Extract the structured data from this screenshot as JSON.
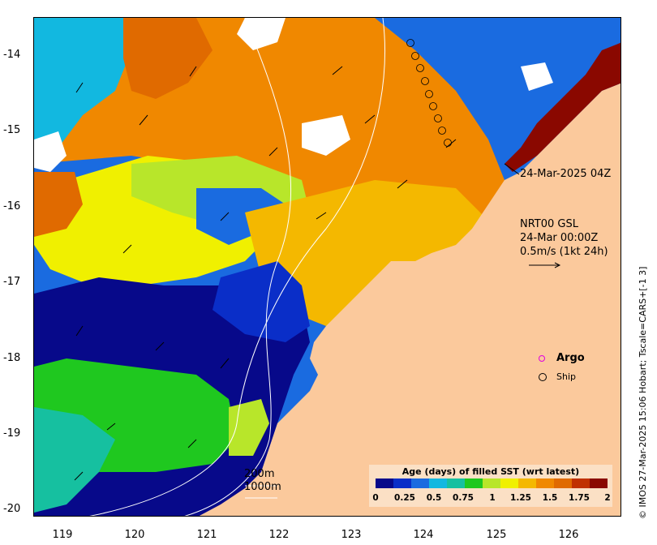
{
  "y_axis": {
    "ticks": [
      "-14",
      "-15",
      "-16",
      "-17",
      "-18",
      "-19",
      "-20"
    ]
  },
  "x_axis": {
    "ticks": [
      "119",
      "120",
      "121",
      "122",
      "123",
      "124",
      "125",
      "126"
    ]
  },
  "annotations": {
    "ship_track_time": "24-Mar-2025 04Z",
    "current_title": "NRT00 GSL",
    "current_time": "24-Mar 00:00Z",
    "current_scale": "0.5m/s (1kt 24h)",
    "isobath_200": "200m",
    "isobath_1000": "1000m"
  },
  "legend": {
    "argo_label": "Argo",
    "ship_label": "Ship",
    "argo_color": "#e000e0"
  },
  "colorbar": {
    "title": "Age (days) of filled SST (wrt latest)",
    "ticks": [
      "0",
      "0.25",
      "0.5",
      "0.75",
      "1",
      "1.25",
      "1.5",
      "1.75",
      "2"
    ],
    "colors": [
      "#07098a",
      "#0a2ec8",
      "#1a6be0",
      "#12b8e0",
      "#16c0a0",
      "#1fc81f",
      "#b8e62a",
      "#f0f000",
      "#f4b800",
      "#f08800",
      "#e06a00",
      "#c03000",
      "#8a0800"
    ]
  },
  "credit": "© IMOS 27-Mar-2025 15:06 Hobart; Tscale=CARS+[-1 3]",
  "colors": {
    "land": "#fbc99c",
    "cloud": "#ffffff"
  }
}
